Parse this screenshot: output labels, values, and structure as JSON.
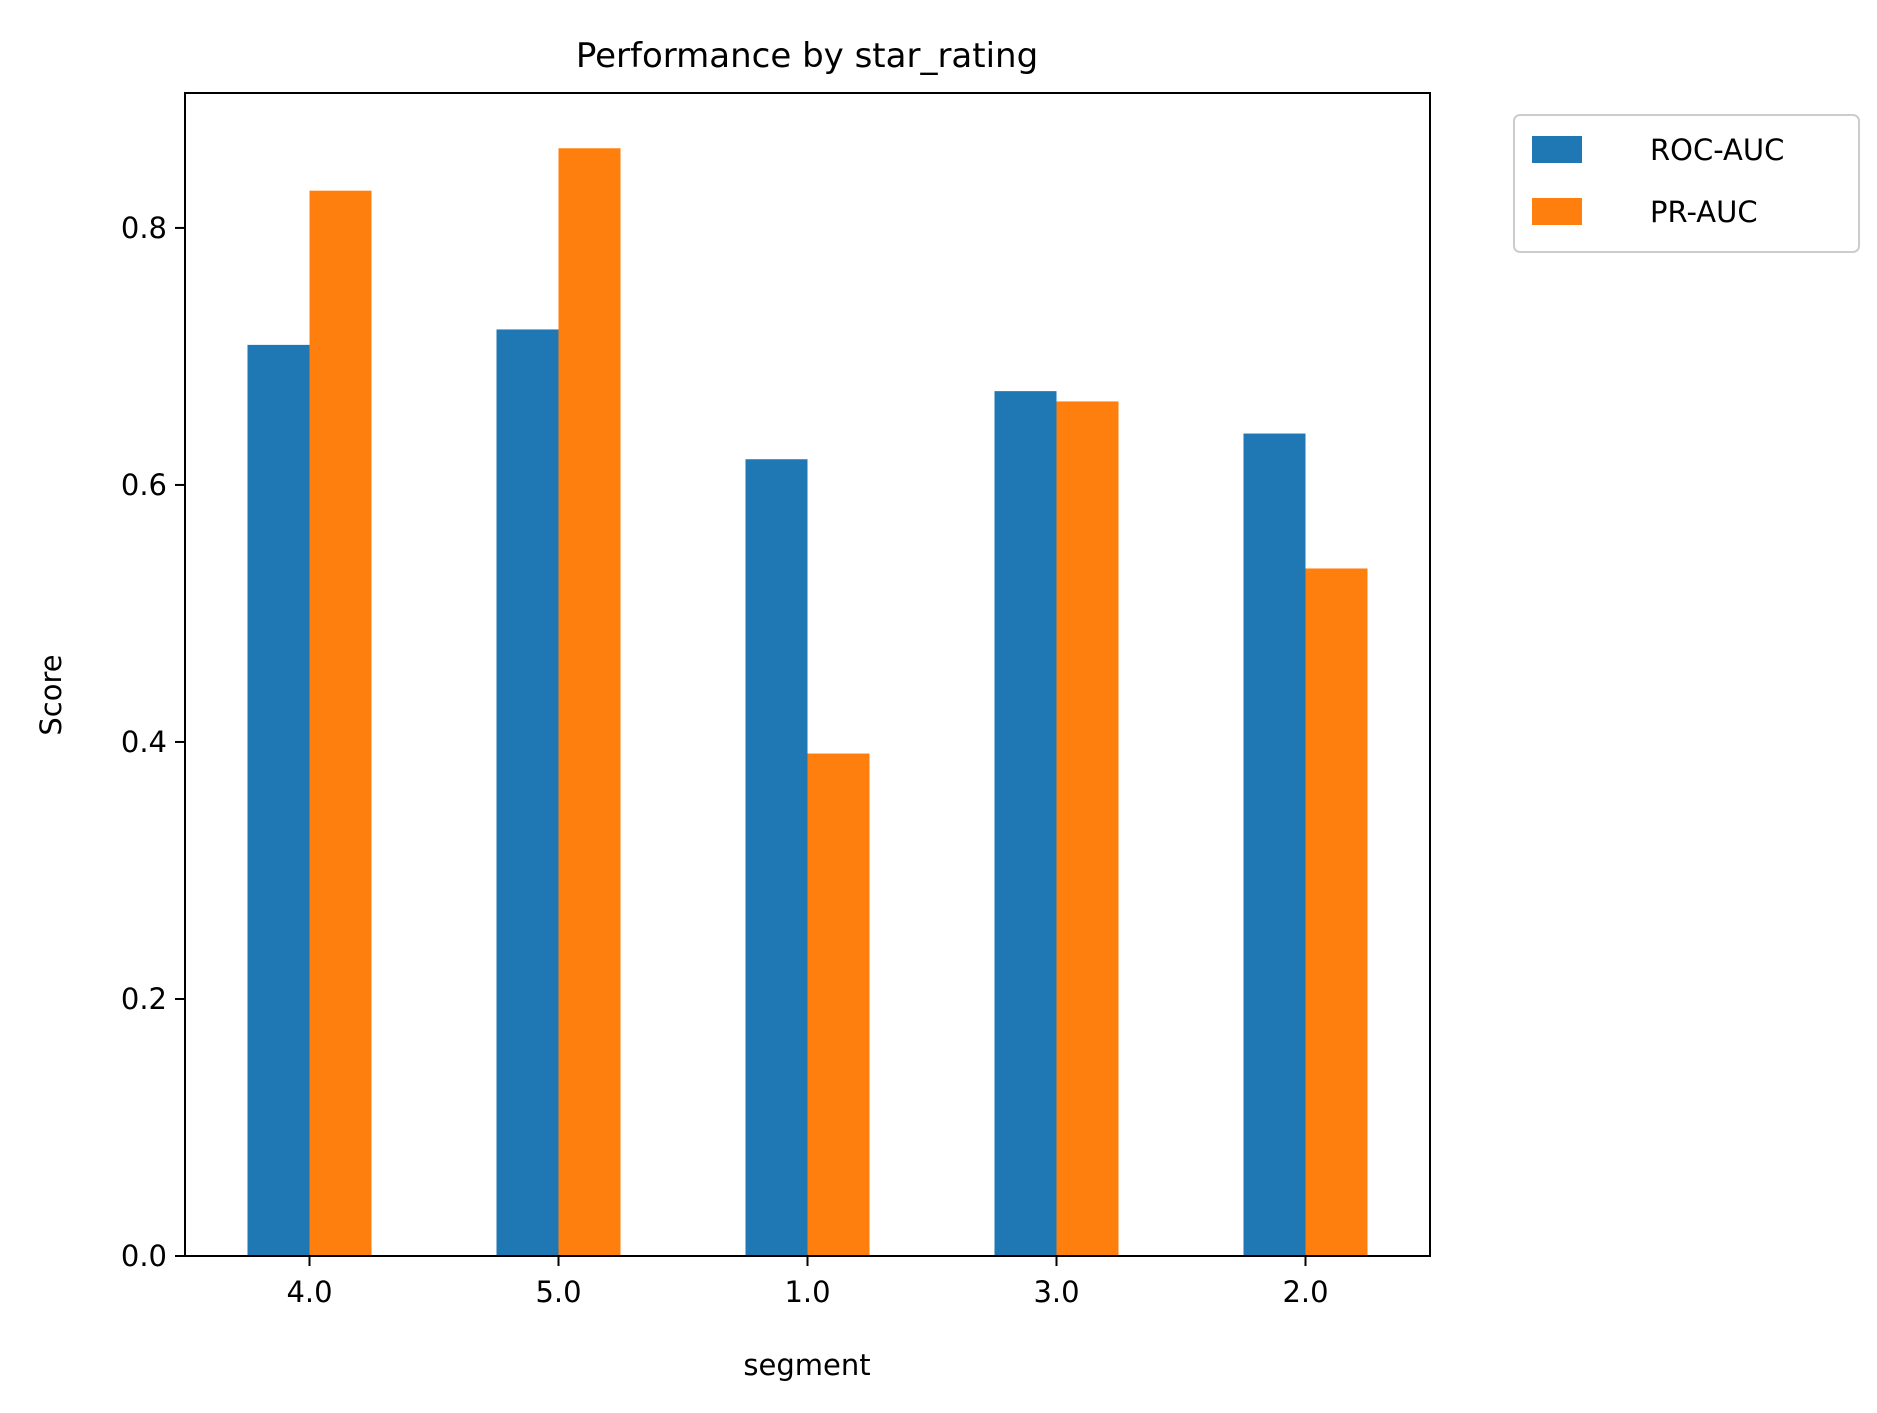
{
  "chart_data": {
    "type": "bar",
    "title": "Performance by star_rating",
    "xlabel": "segment",
    "ylabel": "Score",
    "categories": [
      "4.0",
      "5.0",
      "1.0",
      "3.0",
      "2.0"
    ],
    "series": [
      {
        "name": "ROC-AUC",
        "color": "#1f77b4",
        "values": [
          0.709,
          0.721,
          0.62,
          0.673,
          0.64
        ]
      },
      {
        "name": "PR-AUC",
        "color": "#ff7f0e",
        "values": [
          0.829,
          0.862,
          0.391,
          0.665,
          0.535
        ]
      }
    ],
    "ylim": [
      0,
      0.905
    ],
    "yticks": [
      0.0,
      0.2,
      0.4,
      0.6,
      0.8
    ],
    "ytick_labels": [
      "0.0",
      "0.2",
      "0.4",
      "0.6",
      "0.8"
    ],
    "grid": false,
    "legend_position": "outside-top-right"
  }
}
